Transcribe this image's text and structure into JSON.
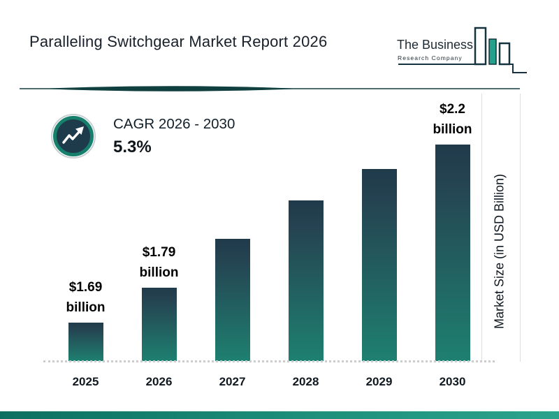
{
  "header": {
    "title": "Paralleling Switchgear Market Report 2026",
    "logo_line1": "The Business",
    "logo_line2": "Research Company"
  },
  "cagr": {
    "label": "CAGR 2026 - 2030",
    "value": "5.3%"
  },
  "chart_data": {
    "type": "bar",
    "title": "Paralleling Switchgear Market Report 2026",
    "categories": [
      "2025",
      "2026",
      "2027",
      "2028",
      "2029",
      "2030"
    ],
    "values": [
      1.69,
      1.79,
      1.93,
      2.04,
      2.13,
      2.2
    ],
    "bar_labels": [
      {
        "line1": "$1.69",
        "line2": "billion"
      },
      {
        "line1": "$1.79",
        "line2": "billion"
      },
      {
        "line1": "",
        "line2": ""
      },
      {
        "line1": "",
        "line2": ""
      },
      {
        "line1": "",
        "line2": ""
      },
      {
        "line1": "$2.2",
        "line2": "billion"
      }
    ],
    "xlabel": "",
    "ylabel": "Market Size (in USD Billion)",
    "ylim": [
      1.58,
      2.2
    ],
    "legend": "none",
    "grid": "dotted-baseline",
    "colors": {
      "bar_gradient_top": "#203a4a",
      "bar_gradient_bottom": "#1e8070",
      "accent_teal": "#17806d",
      "navy": "#1d3b4b",
      "footer_gradient_left": "#0d6f60",
      "footer_gradient_right": "#2ba38c"
    }
  }
}
